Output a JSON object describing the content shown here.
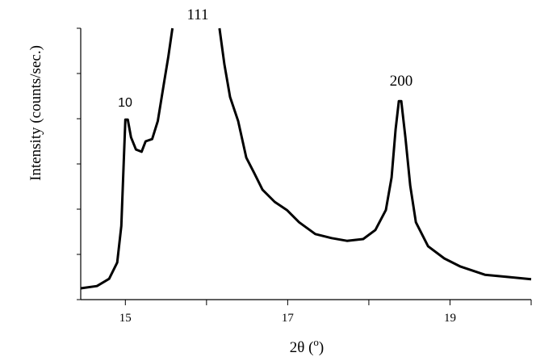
{
  "chart_data": {
    "type": "line",
    "xlabel": [
      "2θ (",
      "o",
      ")"
    ],
    "ylabel": "Intensity (counts/sec.)",
    "annotations": [
      "10",
      "111",
      "200"
    ],
    "x": [
      14.45,
      14.65,
      14.8,
      14.9,
      14.95,
      14.98,
      15.0,
      15.03,
      15.07,
      15.13,
      15.2,
      15.25,
      15.33,
      15.4,
      15.48,
      15.53,
      15.58,
      15.9,
      16.16,
      16.22,
      16.29,
      16.39,
      16.49,
      16.59,
      16.69,
      16.84,
      16.99,
      17.14,
      17.34,
      17.54,
      17.73,
      17.93,
      18.08,
      18.21,
      18.28,
      18.33,
      18.37,
      18.4,
      18.45,
      18.51,
      18.58,
      18.73,
      18.93,
      19.13,
      19.43,
      19.72,
      20.0
    ],
    "series": [
      {
        "color": "#000000",
        "values": [
          0.25,
          0.3,
          0.46,
          0.82,
          1.63,
          3.05,
          3.98,
          3.98,
          3.59,
          3.32,
          3.27,
          3.5,
          3.55,
          3.95,
          4.84,
          5.38,
          6.0,
          null,
          6.0,
          5.2,
          4.48,
          3.95,
          3.14,
          2.79,
          2.43,
          2.16,
          1.98,
          1.71,
          1.45,
          1.36,
          1.3,
          1.34,
          1.54,
          1.98,
          2.7,
          3.77,
          4.39,
          4.39,
          3.59,
          2.52,
          1.71,
          1.18,
          0.91,
          0.73,
          0.55,
          0.5,
          0.45
        ]
      }
    ],
    "xlim": [
      14.45,
      20.0
    ],
    "xticks": [
      15,
      17,
      19
    ],
    "xminor_ticks": [
      16,
      18,
      20
    ],
    "ylim": [
      0,
      6
    ],
    "yticks": [
      0,
      1,
      2,
      3,
      4,
      5,
      6
    ]
  }
}
